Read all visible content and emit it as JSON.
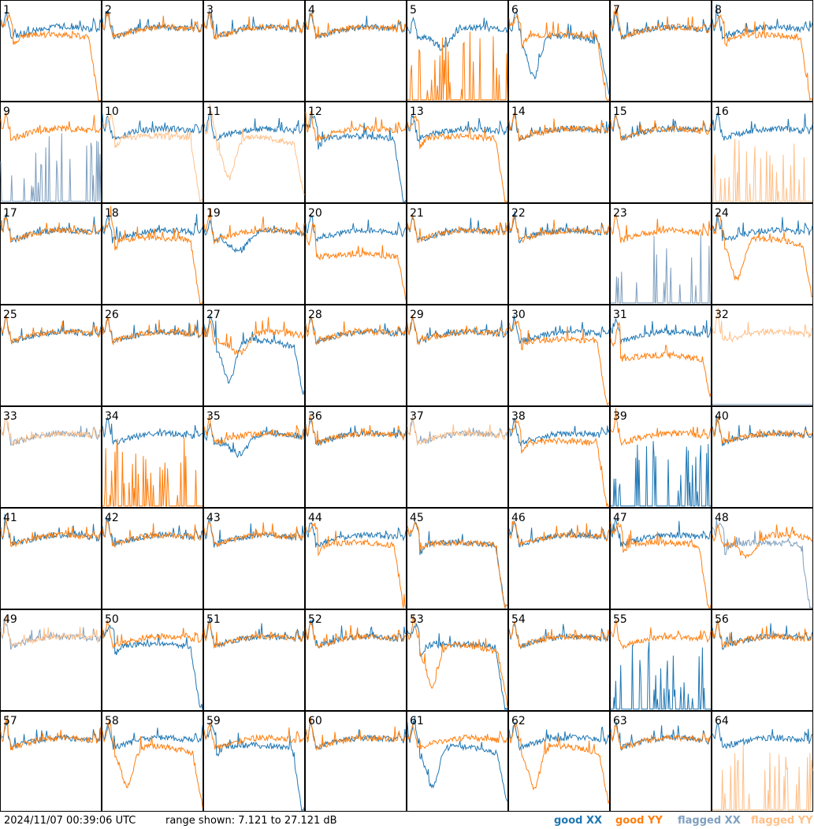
{
  "footer": {
    "timestamp": "2024/11/07 00:39:06 UTC",
    "range_text": "range shown: 7.121 to 27.121 dB",
    "legend": {
      "good_xx": "good XX",
      "good_yy": "good YY",
      "flagged_xx": "flagged XX",
      "flagged_yy": "flagged YY"
    }
  },
  "colors": {
    "good_xx": "#1f77b4",
    "good_yy": "#ff7f0e",
    "flagged_xx": "#7f9fbf",
    "flagged_yy": "#ffc089"
  },
  "chart_data": {
    "type": "line",
    "layout": "8x8 small multiples",
    "ylim": [
      7.121,
      27.121
    ],
    "y_unit": "dB",
    "panels": [
      {
        "label": "1",
        "xx": "good",
        "yy": "good",
        "shape_xx": "normal",
        "shape_yy": "droop"
      },
      {
        "label": "2",
        "xx": "good",
        "yy": "good",
        "shape_xx": "normal",
        "shape_yy": "normal"
      },
      {
        "label": "3",
        "xx": "good",
        "yy": "good",
        "shape_xx": "normal",
        "shape_yy": "normal"
      },
      {
        "label": "4",
        "xx": "good",
        "yy": "good",
        "shape_xx": "normal",
        "shape_yy": "normal"
      },
      {
        "label": "5",
        "xx": "good",
        "yy": "good",
        "shape_xx": "dip",
        "shape_yy": "spikes"
      },
      {
        "label": "6",
        "xx": "good",
        "yy": "good",
        "shape_xx": "deepdip",
        "shape_yy": "droop"
      },
      {
        "label": "7",
        "xx": "good",
        "yy": "good",
        "shape_xx": "normal",
        "shape_yy": "normal"
      },
      {
        "label": "8",
        "xx": "good",
        "yy": "good",
        "shape_xx": "normal",
        "shape_yy": "droop"
      },
      {
        "label": "9",
        "xx": "flagged",
        "yy": "good",
        "shape_xx": "spikes",
        "shape_yy": "normal"
      },
      {
        "label": "10",
        "xx": "good",
        "yy": "flagged",
        "shape_xx": "normal",
        "shape_yy": "droop"
      },
      {
        "label": "11",
        "xx": "good",
        "yy": "flagged",
        "shape_xx": "normal",
        "shape_yy": "deepdip"
      },
      {
        "label": "12",
        "xx": "good",
        "yy": "good",
        "shape_xx": "droop",
        "shape_yy": "normal"
      },
      {
        "label": "13",
        "xx": "good",
        "yy": "good",
        "shape_xx": "normal",
        "shape_yy": "droop"
      },
      {
        "label": "14",
        "xx": "good",
        "yy": "good",
        "shape_xx": "normal",
        "shape_yy": "normal"
      },
      {
        "label": "15",
        "xx": "good",
        "yy": "good",
        "shape_xx": "normal",
        "shape_yy": "normal"
      },
      {
        "label": "16",
        "xx": "good",
        "yy": "flagged",
        "shape_xx": "normal",
        "shape_yy": "spikes"
      },
      {
        "label": "17",
        "xx": "good",
        "yy": "good",
        "shape_xx": "normal",
        "shape_yy": "normal"
      },
      {
        "label": "18",
        "xx": "good",
        "yy": "good",
        "shape_xx": "normal",
        "shape_yy": "droop"
      },
      {
        "label": "19",
        "xx": "good",
        "yy": "good",
        "shape_xx": "dip",
        "shape_yy": "normal"
      },
      {
        "label": "20",
        "xx": "good",
        "yy": "good",
        "shape_xx": "normal",
        "shape_yy": "low"
      },
      {
        "label": "21",
        "xx": "good",
        "yy": "good",
        "shape_xx": "normal",
        "shape_yy": "normal"
      },
      {
        "label": "22",
        "xx": "good",
        "yy": "good",
        "shape_xx": "normal",
        "shape_yy": "normal"
      },
      {
        "label": "23",
        "xx": "flagged",
        "yy": "good",
        "shape_xx": "spikes",
        "shape_yy": "normal"
      },
      {
        "label": "24",
        "xx": "good",
        "yy": "good",
        "shape_xx": "normal",
        "shape_yy": "deepdip"
      },
      {
        "label": "25",
        "xx": "good",
        "yy": "good",
        "shape_xx": "normal",
        "shape_yy": "normal"
      },
      {
        "label": "26",
        "xx": "good",
        "yy": "good",
        "shape_xx": "normal",
        "shape_yy": "normal"
      },
      {
        "label": "27",
        "xx": "good",
        "yy": "good",
        "shape_xx": "deepdip",
        "shape_yy": "dip"
      },
      {
        "label": "28",
        "xx": "good",
        "yy": "good",
        "shape_xx": "normal",
        "shape_yy": "normal"
      },
      {
        "label": "29",
        "xx": "good",
        "yy": "good",
        "shape_xx": "normal",
        "shape_yy": "normal"
      },
      {
        "label": "30",
        "xx": "good",
        "yy": "good",
        "shape_xx": "normal",
        "shape_yy": "droop"
      },
      {
        "label": "31",
        "xx": "good",
        "yy": "good",
        "shape_xx": "normal",
        "shape_yy": "low"
      },
      {
        "label": "32",
        "xx": "flagged",
        "yy": "flagged",
        "shape_xx": "flat",
        "shape_yy": "normal"
      },
      {
        "label": "33",
        "xx": "flagged",
        "yy": "flagged",
        "shape_xx": "normal",
        "shape_yy": "normal"
      },
      {
        "label": "34",
        "xx": "good",
        "yy": "good",
        "shape_xx": "normal",
        "shape_yy": "spikes"
      },
      {
        "label": "35",
        "xx": "good",
        "yy": "good",
        "shape_xx": "dip",
        "shape_yy": "normal"
      },
      {
        "label": "36",
        "xx": "good",
        "yy": "good",
        "shape_xx": "normal",
        "shape_yy": "normal"
      },
      {
        "label": "37",
        "xx": "flagged",
        "yy": "flagged",
        "shape_xx": "normal",
        "shape_yy": "normal"
      },
      {
        "label": "38",
        "xx": "good",
        "yy": "good",
        "shape_xx": "normal",
        "shape_yy": "droop"
      },
      {
        "label": "39",
        "xx": "good",
        "yy": "good",
        "shape_xx": "spikes",
        "shape_yy": "normal"
      },
      {
        "label": "40",
        "xx": "good",
        "yy": "good",
        "shape_xx": "normal",
        "shape_yy": "normal"
      },
      {
        "label": "41",
        "xx": "good",
        "yy": "good",
        "shape_xx": "normal",
        "shape_yy": "normal"
      },
      {
        "label": "42",
        "xx": "good",
        "yy": "good",
        "shape_xx": "normal",
        "shape_yy": "normal"
      },
      {
        "label": "43",
        "xx": "good",
        "yy": "good",
        "shape_xx": "normal",
        "shape_yy": "normal"
      },
      {
        "label": "44",
        "xx": "good",
        "yy": "good",
        "shape_xx": "normal",
        "shape_yy": "droop"
      },
      {
        "label": "45",
        "xx": "good",
        "yy": "good",
        "shape_xx": "droop",
        "shape_yy": "droop"
      },
      {
        "label": "46",
        "xx": "good",
        "yy": "good",
        "shape_xx": "normal",
        "shape_yy": "normal"
      },
      {
        "label": "47",
        "xx": "good",
        "yy": "good",
        "shape_xx": "normal",
        "shape_yy": "droop"
      },
      {
        "label": "48",
        "xx": "flagged",
        "yy": "good",
        "shape_xx": "droop",
        "shape_yy": "dip"
      },
      {
        "label": "49",
        "xx": "flagged",
        "yy": "flagged",
        "shape_xx": "normal",
        "shape_yy": "normal"
      },
      {
        "label": "50",
        "xx": "good",
        "yy": "good",
        "shape_xx": "droop",
        "shape_yy": "normal"
      },
      {
        "label": "51",
        "xx": "good",
        "yy": "good",
        "shape_xx": "normal",
        "shape_yy": "normal"
      },
      {
        "label": "52",
        "xx": "good",
        "yy": "good",
        "shape_xx": "normal",
        "shape_yy": "normal"
      },
      {
        "label": "53",
        "xx": "good",
        "yy": "good",
        "shape_xx": "droop",
        "shape_yy": "deepdip"
      },
      {
        "label": "54",
        "xx": "good",
        "yy": "good",
        "shape_xx": "normal",
        "shape_yy": "normal"
      },
      {
        "label": "55",
        "xx": "good",
        "yy": "good",
        "shape_xx": "spikes",
        "shape_yy": "normal"
      },
      {
        "label": "56",
        "xx": "good",
        "yy": "good",
        "shape_xx": "normal",
        "shape_yy": "normal"
      },
      {
        "label": "57",
        "xx": "good",
        "yy": "good",
        "shape_xx": "normal",
        "shape_yy": "normal"
      },
      {
        "label": "58",
        "xx": "good",
        "yy": "good",
        "shape_xx": "normal",
        "shape_yy": "deepdip"
      },
      {
        "label": "59",
        "xx": "good",
        "yy": "good",
        "shape_xx": "droop",
        "shape_yy": "normal"
      },
      {
        "label": "60",
        "xx": "good",
        "yy": "good",
        "shape_xx": "normal",
        "shape_yy": "normal"
      },
      {
        "label": "61",
        "xx": "good",
        "yy": "good",
        "shape_xx": "deepdip",
        "shape_yy": "normal"
      },
      {
        "label": "62",
        "xx": "good",
        "yy": "good",
        "shape_xx": "normal",
        "shape_yy": "deepdip"
      },
      {
        "label": "63",
        "xx": "good",
        "yy": "good",
        "shape_xx": "normal",
        "shape_yy": "normal"
      },
      {
        "label": "64",
        "xx": "good",
        "yy": "flagged",
        "shape_xx": "normal",
        "shape_yy": "spikes"
      }
    ]
  }
}
